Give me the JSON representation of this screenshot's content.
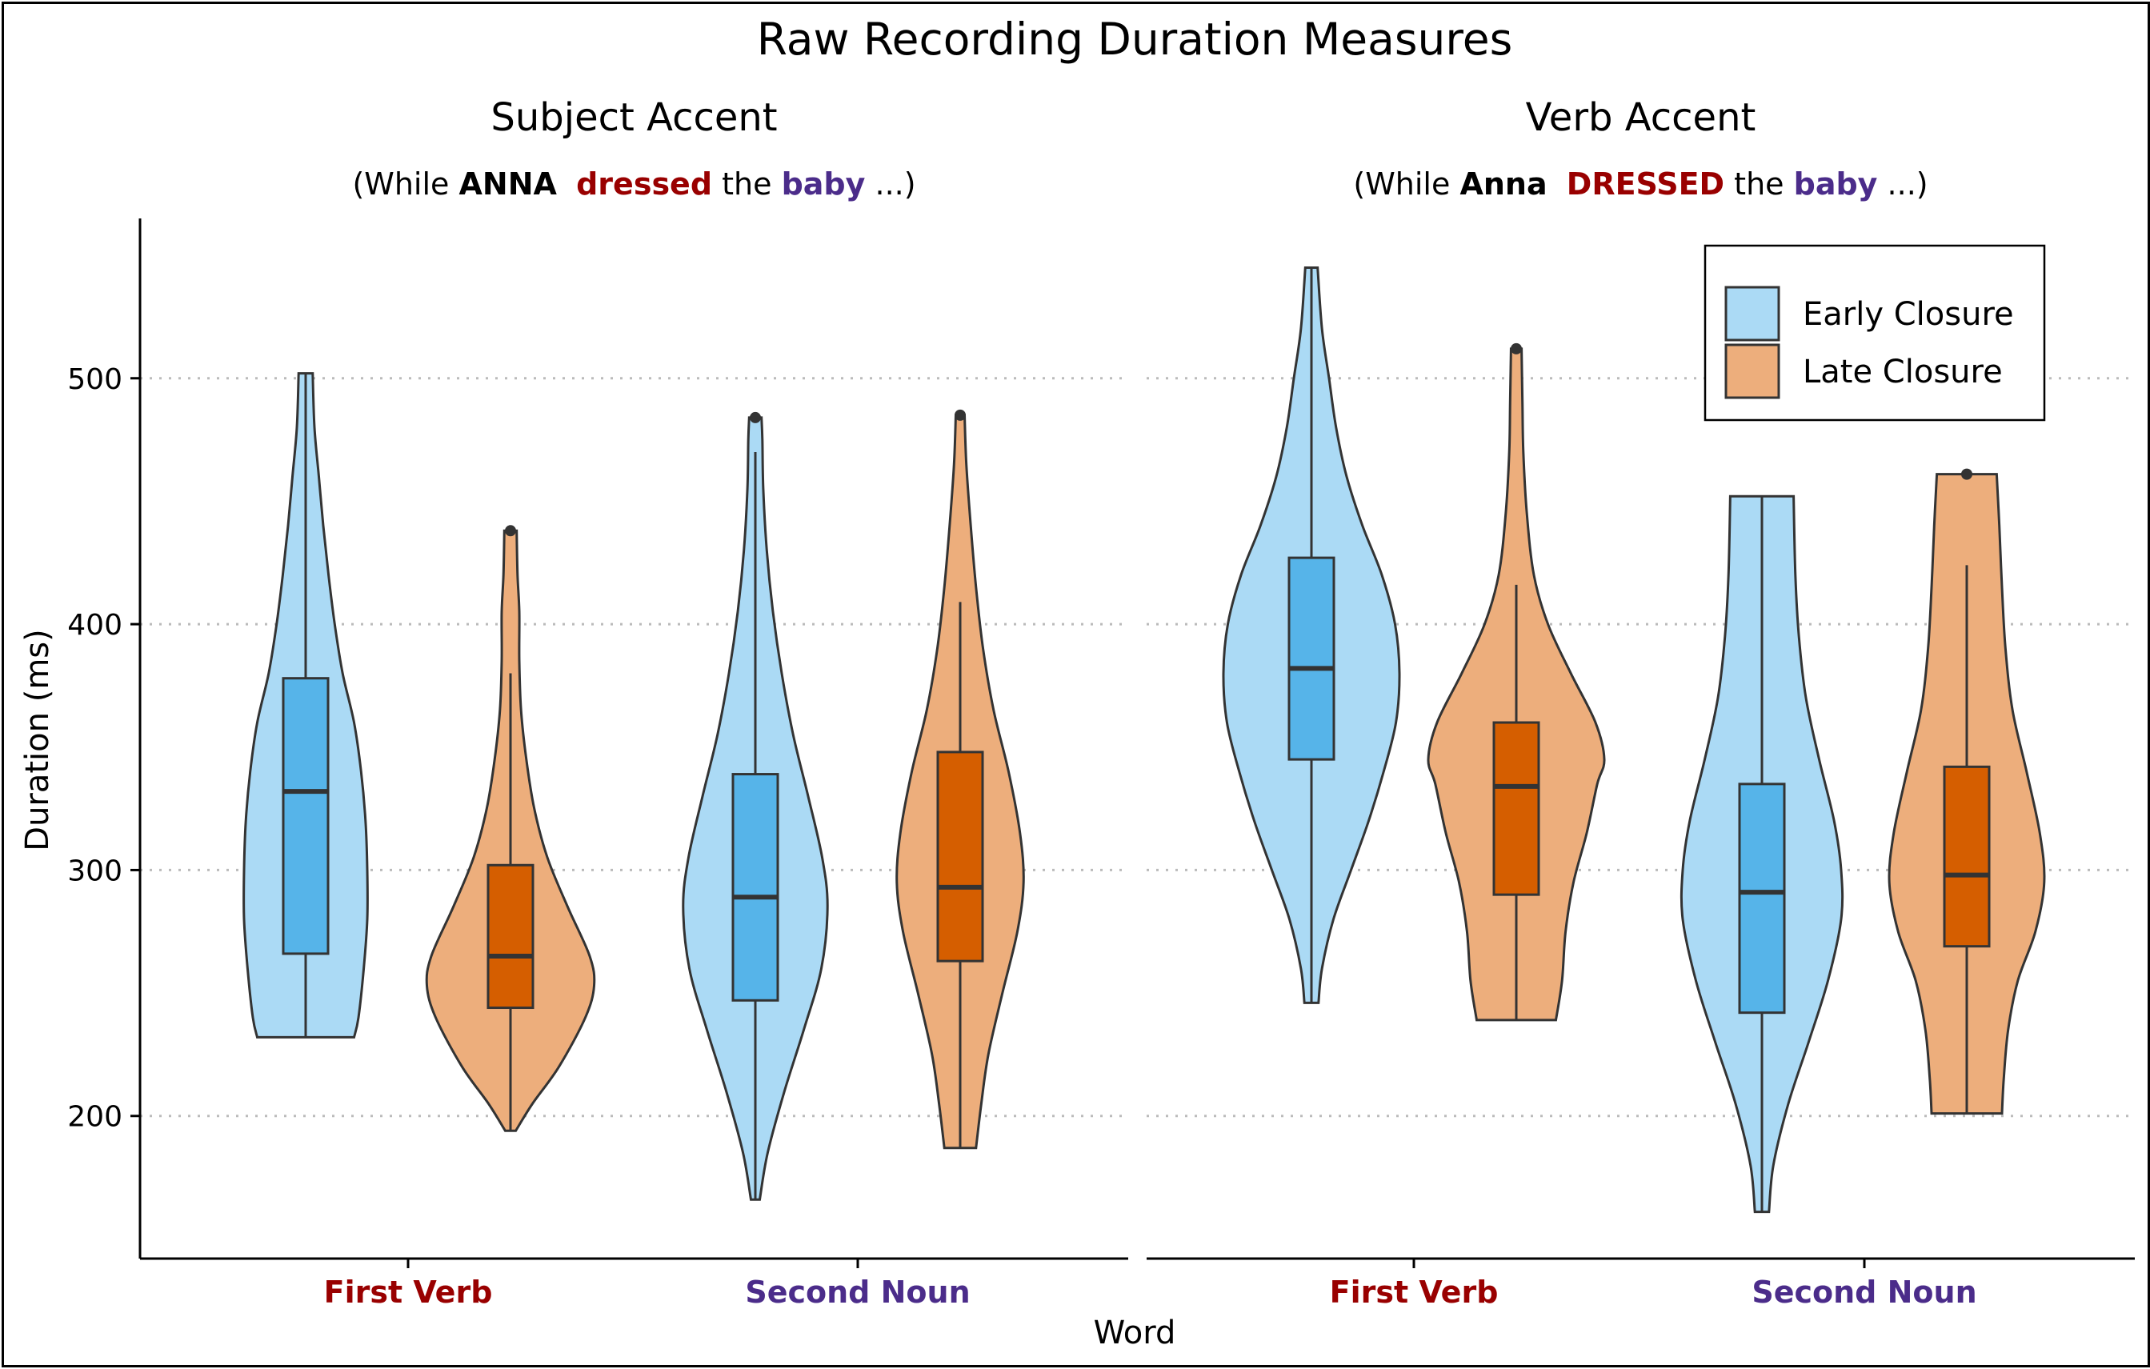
{
  "title": "Raw Recording Duration Measures",
  "xlabel": "Word",
  "ylabel": "Duration (ms)",
  "colors": {
    "early_violin": "#ABDAF5",
    "early_box": "#56B4E9",
    "late_violin": "#EDAE7C",
    "late_box": "#D55E00",
    "first_verb_label": "#990000",
    "second_noun_label": "#4B2C8A",
    "outline": "#333333",
    "grid": "#BBBBBB"
  },
  "legend": {
    "position": "top-right",
    "items": [
      {
        "label": "Early Closure",
        "color": "#ABDAF5"
      },
      {
        "label": "Late Closure",
        "color": "#EDAE7C"
      }
    ]
  },
  "panels": [
    {
      "title": "Subject Accent",
      "subtitle": [
        {
          "text": "(While ",
          "style": "plain"
        },
        {
          "text": "ANNA",
          "style": "bold"
        },
        {
          "text": "  ",
          "style": "plain"
        },
        {
          "text": "dressed",
          "style": "verb"
        },
        {
          "text": " the ",
          "style": "plain"
        },
        {
          "text": "baby",
          "style": "noun"
        },
        {
          "text": " ...)",
          "style": "plain"
        }
      ]
    },
    {
      "title": "Verb Accent",
      "subtitle": [
        {
          "text": "(While ",
          "style": "plain"
        },
        {
          "text": "Anna",
          "style": "bold"
        },
        {
          "text": "  ",
          "style": "plain"
        },
        {
          "text": "DRESSED",
          "style": "verb"
        },
        {
          "text": " the ",
          "style": "plain"
        },
        {
          "text": "baby",
          "style": "noun"
        },
        {
          "text": " ...)",
          "style": "plain"
        }
      ]
    }
  ],
  "chart_data": {
    "type": "violin",
    "title": "Raw Recording Duration Measures",
    "xlabel": "Word",
    "ylabel": "Duration (ms)",
    "ylim": [
      142,
      565
    ],
    "yticks": [
      200,
      300,
      400,
      500
    ],
    "grid": "horizontal dotted",
    "categories": [
      "First Verb",
      "Second Noun"
    ],
    "facets": [
      "Subject Accent",
      "Verb Accent"
    ],
    "series": [
      {
        "name": "Early Closure",
        "groups": [
          {
            "facet": "Subject Accent",
            "category": "First Verb",
            "min": 232,
            "max": 502,
            "q1": 266,
            "median": 332,
            "q3": 378,
            "whisker_low": 232,
            "whisker_high": 502,
            "outliers": [],
            "density": [
              [
                232,
                0.55
              ],
              [
                240,
                0.6
              ],
              [
                260,
                0.66
              ],
              [
                280,
                0.7
              ],
              [
                300,
                0.7
              ],
              [
                320,
                0.68
              ],
              [
                340,
                0.63
              ],
              [
                360,
                0.55
              ],
              [
                380,
                0.42
              ],
              [
                400,
                0.33
              ],
              [
                420,
                0.26
              ],
              [
                440,
                0.2
              ],
              [
                460,
                0.15
              ],
              [
                480,
                0.1
              ],
              [
                502,
                0.08
              ]
            ]
          },
          {
            "facet": "Subject Accent",
            "category": "Second Noun",
            "min": 166,
            "max": 484,
            "q1": 247,
            "median": 289,
            "q3": 339,
            "whisker_low": 166,
            "whisker_high": 470,
            "outliers": [
              484
            ],
            "density": [
              [
                166,
                0.05
              ],
              [
                185,
                0.14
              ],
              [
                210,
                0.33
              ],
              [
                235,
                0.55
              ],
              [
                260,
                0.75
              ],
              [
                285,
                0.82
              ],
              [
                305,
                0.76
              ],
              [
                330,
                0.6
              ],
              [
                355,
                0.43
              ],
              [
                380,
                0.3
              ],
              [
                405,
                0.2
              ],
              [
                430,
                0.13
              ],
              [
                455,
                0.09
              ],
              [
                475,
                0.08
              ],
              [
                484,
                0.07
              ]
            ]
          },
          {
            "facet": "Verb Accent",
            "category": "First Verb",
            "min": 246,
            "max": 545,
            "q1": 345,
            "median": 382,
            "q3": 427,
            "whisker_low": 246,
            "whisker_high": 545,
            "outliers": [],
            "density": [
              [
                246,
                0.08
              ],
              [
                260,
                0.12
              ],
              [
                280,
                0.25
              ],
              [
                300,
                0.45
              ],
              [
                320,
                0.65
              ],
              [
                340,
                0.82
              ],
              [
                360,
                0.96
              ],
              [
                380,
                1.0
              ],
              [
                400,
                0.95
              ],
              [
                420,
                0.8
              ],
              [
                440,
                0.58
              ],
              [
                460,
                0.4
              ],
              [
                480,
                0.28
              ],
              [
                500,
                0.2
              ],
              [
                520,
                0.12
              ],
              [
                545,
                0.07
              ]
            ]
          },
          {
            "facet": "Verb Accent",
            "category": "Second Noun",
            "min": 161,
            "max": 452,
            "q1": 242,
            "median": 291,
            "q3": 335,
            "whisker_low": 161,
            "whisker_high": 452,
            "outliers": [],
            "density": [
              [
                161,
                0.08
              ],
              [
                180,
                0.13
              ],
              [
                205,
                0.3
              ],
              [
                230,
                0.53
              ],
              [
                255,
                0.75
              ],
              [
                280,
                0.9
              ],
              [
                300,
                0.9
              ],
              [
                320,
                0.82
              ],
              [
                345,
                0.65
              ],
              [
                370,
                0.5
              ],
              [
                395,
                0.42
              ],
              [
                420,
                0.38
              ],
              [
                452,
                0.36
              ]
            ]
          }
        ]
      },
      {
        "name": "Late Closure",
        "groups": [
          {
            "facet": "Subject Accent",
            "category": "First Verb",
            "min": 194,
            "max": 438,
            "q1": 244,
            "median": 265,
            "q3": 302,
            "whisker_low": 194,
            "whisker_high": 380,
            "outliers": [
              438
            ],
            "density": [
              [
                194,
                0.06
              ],
              [
                205,
                0.25
              ],
              [
                220,
                0.55
              ],
              [
                240,
                0.85
              ],
              [
                253,
                0.95
              ],
              [
                265,
                0.9
              ],
              [
                285,
                0.65
              ],
              [
                305,
                0.42
              ],
              [
                325,
                0.27
              ],
              [
                345,
                0.18
              ],
              [
                365,
                0.12
              ],
              [
                385,
                0.1
              ],
              [
                405,
                0.1
              ],
              [
                420,
                0.08
              ],
              [
                438,
                0.07
              ]
            ]
          },
          {
            "facet": "Subject Accent",
            "category": "Second Noun",
            "min": 187,
            "max": 485,
            "q1": 263,
            "median": 293,
            "q3": 348,
            "whisker_low": 187,
            "whisker_high": 409,
            "outliers": [
              485
            ],
            "density": [
              [
                187,
                0.18
              ],
              [
                205,
                0.24
              ],
              [
                225,
                0.32
              ],
              [
                250,
                0.48
              ],
              [
                275,
                0.65
              ],
              [
                295,
                0.72
              ],
              [
                315,
                0.68
              ],
              [
                340,
                0.55
              ],
              [
                365,
                0.38
              ],
              [
                390,
                0.26
              ],
              [
                415,
                0.18
              ],
              [
                440,
                0.12
              ],
              [
                465,
                0.07
              ],
              [
                485,
                0.05
              ]
            ]
          },
          {
            "facet": "Verb Accent",
            "category": "First Verb",
            "min": 239,
            "max": 512,
            "q1": 290,
            "median": 334,
            "q3": 360,
            "whisker_low": 239,
            "whisker_high": 416,
            "outliers": [
              512
            ],
            "density": [
              [
                239,
                0.45
              ],
              [
                255,
                0.52
              ],
              [
                275,
                0.56
              ],
              [
                295,
                0.65
              ],
              [
                315,
                0.8
              ],
              [
                335,
                0.92
              ],
              [
                345,
                1.0
              ],
              [
                360,
                0.9
              ],
              [
                380,
                0.62
              ],
              [
                400,
                0.36
              ],
              [
                420,
                0.2
              ],
              [
                445,
                0.12
              ],
              [
                470,
                0.08
              ],
              [
                490,
                0.07
              ],
              [
                512,
                0.06
              ]
            ]
          },
          {
            "facet": "Verb Accent",
            "category": "Second Noun",
            "min": 201,
            "max": 461,
            "q1": 269,
            "median": 298,
            "q3": 342,
            "whisker_low": 201,
            "whisker_high": 424,
            "outliers": [
              461
            ],
            "density": [
              [
                201,
                0.4
              ],
              [
                215,
                0.42
              ],
              [
                235,
                0.47
              ],
              [
                255,
                0.58
              ],
              [
                275,
                0.78
              ],
              [
                295,
                0.88
              ],
              [
                315,
                0.83
              ],
              [
                340,
                0.68
              ],
              [
                365,
                0.52
              ],
              [
                390,
                0.44
              ],
              [
                415,
                0.4
              ],
              [
                440,
                0.37
              ],
              [
                461,
                0.34
              ]
            ]
          }
        ]
      }
    ]
  }
}
